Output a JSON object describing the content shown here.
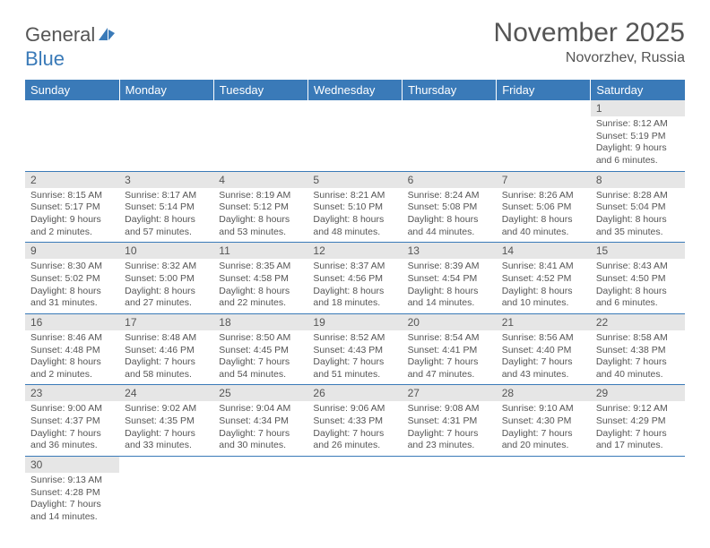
{
  "logo": {
    "text_gray": "General",
    "text_blue": "Blue"
  },
  "header": {
    "month": "November 2025",
    "location": "Novorzhev, Russia"
  },
  "colors": {
    "header_bg": "#3a7ab8",
    "header_fg": "#ffffff",
    "daynum_bg": "#e6e6e6",
    "border": "#3a7ab8",
    "text": "#555555"
  },
  "weekdays": [
    "Sunday",
    "Monday",
    "Tuesday",
    "Wednesday",
    "Thursday",
    "Friday",
    "Saturday"
  ],
  "weeks": [
    [
      {
        "empty": true
      },
      {
        "empty": true
      },
      {
        "empty": true
      },
      {
        "empty": true
      },
      {
        "empty": true
      },
      {
        "empty": true
      },
      {
        "num": "1",
        "sunrise": "Sunrise: 8:12 AM",
        "sunset": "Sunset: 5:19 PM",
        "daylight": "Daylight: 9 hours and 6 minutes."
      }
    ],
    [
      {
        "num": "2",
        "sunrise": "Sunrise: 8:15 AM",
        "sunset": "Sunset: 5:17 PM",
        "daylight": "Daylight: 9 hours and 2 minutes."
      },
      {
        "num": "3",
        "sunrise": "Sunrise: 8:17 AM",
        "sunset": "Sunset: 5:14 PM",
        "daylight": "Daylight: 8 hours and 57 minutes."
      },
      {
        "num": "4",
        "sunrise": "Sunrise: 8:19 AM",
        "sunset": "Sunset: 5:12 PM",
        "daylight": "Daylight: 8 hours and 53 minutes."
      },
      {
        "num": "5",
        "sunrise": "Sunrise: 8:21 AM",
        "sunset": "Sunset: 5:10 PM",
        "daylight": "Daylight: 8 hours and 48 minutes."
      },
      {
        "num": "6",
        "sunrise": "Sunrise: 8:24 AM",
        "sunset": "Sunset: 5:08 PM",
        "daylight": "Daylight: 8 hours and 44 minutes."
      },
      {
        "num": "7",
        "sunrise": "Sunrise: 8:26 AM",
        "sunset": "Sunset: 5:06 PM",
        "daylight": "Daylight: 8 hours and 40 minutes."
      },
      {
        "num": "8",
        "sunrise": "Sunrise: 8:28 AM",
        "sunset": "Sunset: 5:04 PM",
        "daylight": "Daylight: 8 hours and 35 minutes."
      }
    ],
    [
      {
        "num": "9",
        "sunrise": "Sunrise: 8:30 AM",
        "sunset": "Sunset: 5:02 PM",
        "daylight": "Daylight: 8 hours and 31 minutes."
      },
      {
        "num": "10",
        "sunrise": "Sunrise: 8:32 AM",
        "sunset": "Sunset: 5:00 PM",
        "daylight": "Daylight: 8 hours and 27 minutes."
      },
      {
        "num": "11",
        "sunrise": "Sunrise: 8:35 AM",
        "sunset": "Sunset: 4:58 PM",
        "daylight": "Daylight: 8 hours and 22 minutes."
      },
      {
        "num": "12",
        "sunrise": "Sunrise: 8:37 AM",
        "sunset": "Sunset: 4:56 PM",
        "daylight": "Daylight: 8 hours and 18 minutes."
      },
      {
        "num": "13",
        "sunrise": "Sunrise: 8:39 AM",
        "sunset": "Sunset: 4:54 PM",
        "daylight": "Daylight: 8 hours and 14 minutes."
      },
      {
        "num": "14",
        "sunrise": "Sunrise: 8:41 AM",
        "sunset": "Sunset: 4:52 PM",
        "daylight": "Daylight: 8 hours and 10 minutes."
      },
      {
        "num": "15",
        "sunrise": "Sunrise: 8:43 AM",
        "sunset": "Sunset: 4:50 PM",
        "daylight": "Daylight: 8 hours and 6 minutes."
      }
    ],
    [
      {
        "num": "16",
        "sunrise": "Sunrise: 8:46 AM",
        "sunset": "Sunset: 4:48 PM",
        "daylight": "Daylight: 8 hours and 2 minutes."
      },
      {
        "num": "17",
        "sunrise": "Sunrise: 8:48 AM",
        "sunset": "Sunset: 4:46 PM",
        "daylight": "Daylight: 7 hours and 58 minutes."
      },
      {
        "num": "18",
        "sunrise": "Sunrise: 8:50 AM",
        "sunset": "Sunset: 4:45 PM",
        "daylight": "Daylight: 7 hours and 54 minutes."
      },
      {
        "num": "19",
        "sunrise": "Sunrise: 8:52 AM",
        "sunset": "Sunset: 4:43 PM",
        "daylight": "Daylight: 7 hours and 51 minutes."
      },
      {
        "num": "20",
        "sunrise": "Sunrise: 8:54 AM",
        "sunset": "Sunset: 4:41 PM",
        "daylight": "Daylight: 7 hours and 47 minutes."
      },
      {
        "num": "21",
        "sunrise": "Sunrise: 8:56 AM",
        "sunset": "Sunset: 4:40 PM",
        "daylight": "Daylight: 7 hours and 43 minutes."
      },
      {
        "num": "22",
        "sunrise": "Sunrise: 8:58 AM",
        "sunset": "Sunset: 4:38 PM",
        "daylight": "Daylight: 7 hours and 40 minutes."
      }
    ],
    [
      {
        "num": "23",
        "sunrise": "Sunrise: 9:00 AM",
        "sunset": "Sunset: 4:37 PM",
        "daylight": "Daylight: 7 hours and 36 minutes."
      },
      {
        "num": "24",
        "sunrise": "Sunrise: 9:02 AM",
        "sunset": "Sunset: 4:35 PM",
        "daylight": "Daylight: 7 hours and 33 minutes."
      },
      {
        "num": "25",
        "sunrise": "Sunrise: 9:04 AM",
        "sunset": "Sunset: 4:34 PM",
        "daylight": "Daylight: 7 hours and 30 minutes."
      },
      {
        "num": "26",
        "sunrise": "Sunrise: 9:06 AM",
        "sunset": "Sunset: 4:33 PM",
        "daylight": "Daylight: 7 hours and 26 minutes."
      },
      {
        "num": "27",
        "sunrise": "Sunrise: 9:08 AM",
        "sunset": "Sunset: 4:31 PM",
        "daylight": "Daylight: 7 hours and 23 minutes."
      },
      {
        "num": "28",
        "sunrise": "Sunrise: 9:10 AM",
        "sunset": "Sunset: 4:30 PM",
        "daylight": "Daylight: 7 hours and 20 minutes."
      },
      {
        "num": "29",
        "sunrise": "Sunrise: 9:12 AM",
        "sunset": "Sunset: 4:29 PM",
        "daylight": "Daylight: 7 hours and 17 minutes."
      }
    ],
    [
      {
        "num": "30",
        "sunrise": "Sunrise: 9:13 AM",
        "sunset": "Sunset: 4:28 PM",
        "daylight": "Daylight: 7 hours and 14 minutes."
      },
      {
        "empty": true
      },
      {
        "empty": true
      },
      {
        "empty": true
      },
      {
        "empty": true
      },
      {
        "empty": true
      },
      {
        "empty": true
      }
    ]
  ]
}
